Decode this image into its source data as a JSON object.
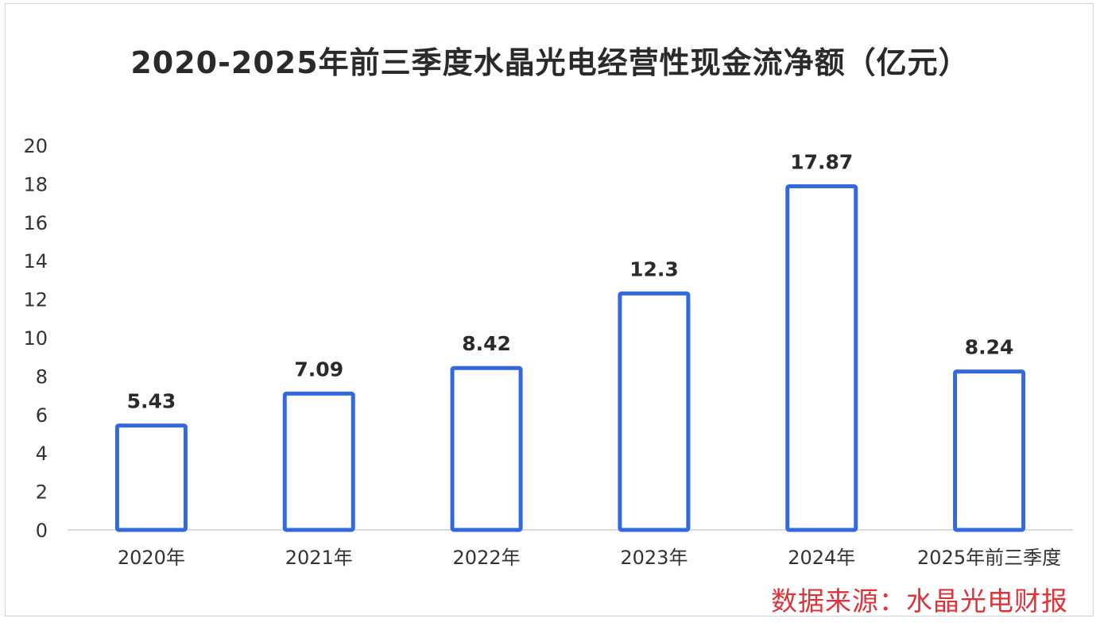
{
  "chart_data": {
    "type": "bar",
    "title": "2020-2025年前三季度水晶光电经营性现金流净额（亿元）",
    "categories": [
      "2020年",
      "2021年",
      "2022年",
      "2023年",
      "2024年",
      "2025年前三季度"
    ],
    "values": [
      5.43,
      7.09,
      8.42,
      12.3,
      17.87,
      8.24
    ],
    "value_labels": [
      "5.43",
      "7.09",
      "8.42",
      "12.3",
      "17.87",
      "8.24"
    ],
    "ylim": [
      0,
      20
    ],
    "yticks": [
      0,
      2,
      4,
      6,
      8,
      10,
      12,
      14,
      16,
      18,
      20
    ],
    "xlabel": "",
    "ylabel": "",
    "grid": false,
    "legend": "none"
  },
  "colors": {
    "bar_stroke": "#3369e0",
    "bar_fill": "#ffffff",
    "axis": "#d0d0d0",
    "label_text": "#2a2a2a",
    "watermark": "#e0323a"
  },
  "watermark": "数据来源：水晶光电财报"
}
